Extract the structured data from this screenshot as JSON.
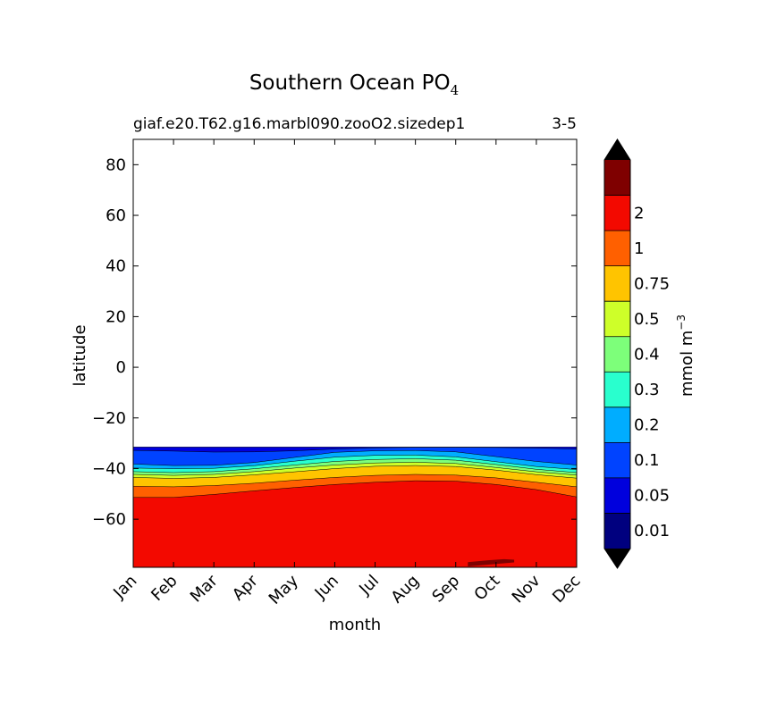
{
  "chart_data": {
    "type": "heatmap",
    "title_main": "Southern Ocean PO",
    "title_sub": "4",
    "case_label": "giaf.e20.T62.g16.marbl090.zooO2.sizedep1",
    "year_label": "3-5",
    "xlabel": "month",
    "ylabel": "latitude",
    "x_ticks": [
      "Jan",
      "Feb",
      "Mar",
      "Apr",
      "May",
      "Jun",
      "Jul",
      "Aug",
      "Sep",
      "Oct",
      "Nov",
      "Dec"
    ],
    "xlim": [
      0,
      11
    ],
    "ylim": [
      -79,
      90
    ],
    "y_ticks": [
      80,
      60,
      40,
      20,
      0,
      -20,
      -40,
      -60
    ],
    "y_tick_labels": [
      "80",
      "60",
      "40",
      "20",
      "0",
      "−20",
      "−40",
      "−60"
    ],
    "data_north_limit": -31.5,
    "colorbar": {
      "label": "mmol m",
      "label_exp": "−3",
      "levels": [
        0.01,
        0.05,
        0.1,
        0.2,
        0.3,
        0.4,
        0.5,
        0.75,
        1,
        2
      ],
      "tick_labels": [
        "0.01",
        "0.05",
        "0.1",
        "0.2",
        "0.3",
        "0.4",
        "0.5",
        "0.75",
        "1",
        "2"
      ],
      "colors": [
        "#00007f",
        "#0000dd",
        "#0043ff",
        "#00adff",
        "#29ffce",
        "#7dff7a",
        "#ceff29",
        "#ffc400",
        "#ff6000",
        "#f30900",
        "#7f0000"
      ],
      "under_color": "#000000",
      "over_color": "#000000"
    },
    "contours": [
      {
        "level": 0.05,
        "lat": [
          -32.8,
          -33.1,
          -33.5,
          -33.4,
          -33.0,
          -32.3,
          -31.8,
          -31.6,
          -31.6,
          -31.7,
          -31.9,
          -32.3
        ]
      },
      {
        "level": 0.1,
        "lat": [
          -38.2,
          -38.8,
          -38.7,
          -37.6,
          -35.6,
          -33.6,
          -33.0,
          -32.9,
          -33.4,
          -35.3,
          -37.2,
          -38.6
        ]
      },
      {
        "level": 0.2,
        "lat": [
          -39.8,
          -40.1,
          -39.9,
          -38.9,
          -37.1,
          -35.5,
          -34.8,
          -34.7,
          -35.4,
          -37.3,
          -39.2,
          -40.4
        ]
      },
      {
        "level": 0.3,
        "lat": [
          -41.2,
          -41.6,
          -41.2,
          -40.1,
          -38.6,
          -37.2,
          -36.4,
          -36.1,
          -36.7,
          -38.4,
          -40.3,
          -41.6
        ]
      },
      {
        "level": 0.4,
        "lat": [
          -42.3,
          -42.7,
          -42.3,
          -41.2,
          -39.8,
          -38.6,
          -37.8,
          -37.5,
          -38.0,
          -39.6,
          -41.3,
          -42.6
        ]
      },
      {
        "level": 0.5,
        "lat": [
          -43.5,
          -43.9,
          -43.5,
          -42.5,
          -41.3,
          -40.0,
          -39.1,
          -38.8,
          -39.2,
          -40.6,
          -42.4,
          -43.8
        ]
      },
      {
        "level": 0.75,
        "lat": [
          -47.0,
          -47.2,
          -46.7,
          -45.8,
          -44.6,
          -43.5,
          -42.7,
          -42.3,
          -42.6,
          -43.7,
          -45.4,
          -47.2
        ]
      },
      {
        "level": 1,
        "lat": [
          -51.4,
          -51.4,
          -50.2,
          -48.8,
          -47.5,
          -46.3,
          -45.4,
          -44.8,
          -45.0,
          -46.3,
          -48.3,
          -51.2
        ]
      }
    ],
    "max_patch": {
      "level": 2,
      "x": [
        8.3,
        8.8,
        9.2,
        9.45
      ],
      "lat": [
        -77.0,
        -76.2,
        -75.8,
        -76.0
      ]
    }
  }
}
